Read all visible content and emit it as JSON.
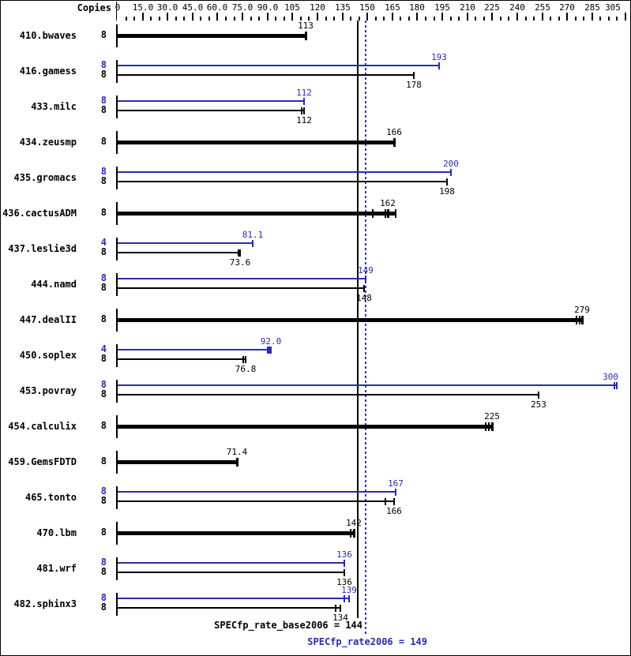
{
  "header": {
    "copies_label": "Copies"
  },
  "footer": {
    "base_label": "SPECfp_rate_base2006 = 144",
    "peak_label": "SPECfp_rate2006 = 149"
  },
  "colors": {
    "peak_blue": "#2b2bad",
    "dotted_blue": "#3333cc",
    "black": "#000000"
  },
  "chart_data": {
    "type": "bar",
    "orientation": "horizontal",
    "axis": {
      "label": "Copies",
      "min": 0,
      "max": 305,
      "major_tick_values": [
        0,
        15,
        30,
        45,
        60,
        75,
        90,
        105,
        120,
        135,
        150,
        165,
        180,
        195,
        210,
        225,
        240,
        255,
        270,
        285,
        305
      ],
      "major_tick_labels": [
        "0",
        "15.0",
        "30.0",
        "45.0",
        "60.0",
        "75.0",
        "90.0",
        "105",
        "120",
        "135",
        "150",
        "165",
        "180",
        "195",
        "210",
        "225",
        "240",
        "255",
        "270",
        "285",
        "305"
      ],
      "minor_tick_step": 5
    },
    "mean_lines": [
      {
        "name": "SPECfp_rate_base2006",
        "value": 144,
        "style": "solid"
      },
      {
        "name": "SPECfp_rate2006",
        "value": 149,
        "style": "dotted"
      }
    ],
    "benchmarks": [
      {
        "name": "410.bwaves",
        "bars": [
          {
            "kind": "basepeak",
            "copies": "8",
            "value": 113,
            "label": "113",
            "runs": []
          }
        ]
      },
      {
        "name": "416.gamess",
        "bars": [
          {
            "kind": "peak",
            "copies": "8",
            "value": 193,
            "label": "193",
            "runs": []
          },
          {
            "kind": "base",
            "copies": "8",
            "value": 178,
            "label": "178",
            "runs": []
          }
        ]
      },
      {
        "name": "433.milc",
        "bars": [
          {
            "kind": "peak",
            "copies": "8",
            "value": 112,
            "label": "112",
            "runs": []
          },
          {
            "kind": "base",
            "copies": "8",
            "value": 112,
            "label": "112",
            "runs": [
              110.5
            ]
          }
        ]
      },
      {
        "name": "434.zeusmp",
        "bars": [
          {
            "kind": "basepeak",
            "copies": "8",
            "value": 166,
            "label": "166",
            "runs": []
          }
        ]
      },
      {
        "name": "435.gromacs",
        "bars": [
          {
            "kind": "peak",
            "copies": "8",
            "value": 200,
            "label": "200",
            "runs": []
          },
          {
            "kind": "base",
            "copies": "8",
            "value": 198,
            "label": "198",
            "runs": []
          }
        ]
      },
      {
        "name": "436.cactusADM",
        "bars": [
          {
            "kind": "basepeak",
            "copies": "8",
            "value": 162,
            "label": "162",
            "runs": [
              153,
              161,
              167
            ]
          }
        ]
      },
      {
        "name": "437.leslie3d",
        "bars": [
          {
            "kind": "peak",
            "copies": "4",
            "value": 81.1,
            "label": "81.1",
            "runs": []
          },
          {
            "kind": "base",
            "copies": "8",
            "value": 73.6,
            "label": "73.6",
            "runs": [
              72.5
            ]
          }
        ]
      },
      {
        "name": "444.namd",
        "bars": [
          {
            "kind": "peak",
            "copies": "8",
            "value": 149,
            "label": "149",
            "runs": []
          },
          {
            "kind": "base",
            "copies": "8",
            "value": 148,
            "label": "148",
            "runs": []
          }
        ]
      },
      {
        "name": "447.dealII",
        "bars": [
          {
            "kind": "basepeak",
            "copies": "8",
            "value": 279,
            "label": "279",
            "runs": [
              275.5,
              277.5
            ]
          }
        ]
      },
      {
        "name": "450.soplex",
        "bars": [
          {
            "kind": "peak",
            "copies": "4",
            "value": 92.0,
            "label": "92.0",
            "runs": [
              90.3,
              91.2
            ]
          },
          {
            "kind": "base",
            "copies": "8",
            "value": 76.8,
            "label": "76.8",
            "runs": [
              75.2
            ]
          }
        ]
      },
      {
        "name": "453.povray",
        "bars": [
          {
            "kind": "peak",
            "copies": "8",
            "value": 300,
            "label": "300",
            "runs": [
              298.3
            ]
          },
          {
            "kind": "base",
            "copies": "8",
            "value": 253,
            "label": "253",
            "runs": []
          }
        ]
      },
      {
        "name": "454.calculix",
        "bars": [
          {
            "kind": "basepeak",
            "copies": "8",
            "value": 225,
            "label": "225",
            "runs": [
              221,
              223
            ]
          }
        ]
      },
      {
        "name": "459.GemsFDTD",
        "bars": [
          {
            "kind": "basepeak",
            "copies": "8",
            "value": 71.4,
            "label": "71.4",
            "runs": []
          }
        ]
      },
      {
        "name": "465.tonto",
        "bars": [
          {
            "kind": "peak",
            "copies": "8",
            "value": 167,
            "label": "167",
            "runs": []
          },
          {
            "kind": "base",
            "copies": "8",
            "value": 166,
            "label": "166",
            "runs": [
              160.7
            ]
          }
        ]
      },
      {
        "name": "470.lbm",
        "bars": [
          {
            "kind": "basepeak",
            "copies": "8",
            "value": 142,
            "label": "142",
            "runs": [
              140
            ]
          }
        ]
      },
      {
        "name": "481.wrf",
        "bars": [
          {
            "kind": "peak",
            "copies": "8",
            "value": 136,
            "label": "136",
            "runs": []
          },
          {
            "kind": "base",
            "copies": "8",
            "value": 136,
            "label": "136",
            "runs": []
          }
        ]
      },
      {
        "name": "482.sphinx3",
        "bars": [
          {
            "kind": "peak",
            "copies": "8",
            "value": 139,
            "label": "139",
            "runs": [
              136.3
            ]
          },
          {
            "kind": "base",
            "copies": "8",
            "value": 134,
            "label": "134",
            "runs": [
              131
            ]
          }
        ]
      }
    ]
  }
}
